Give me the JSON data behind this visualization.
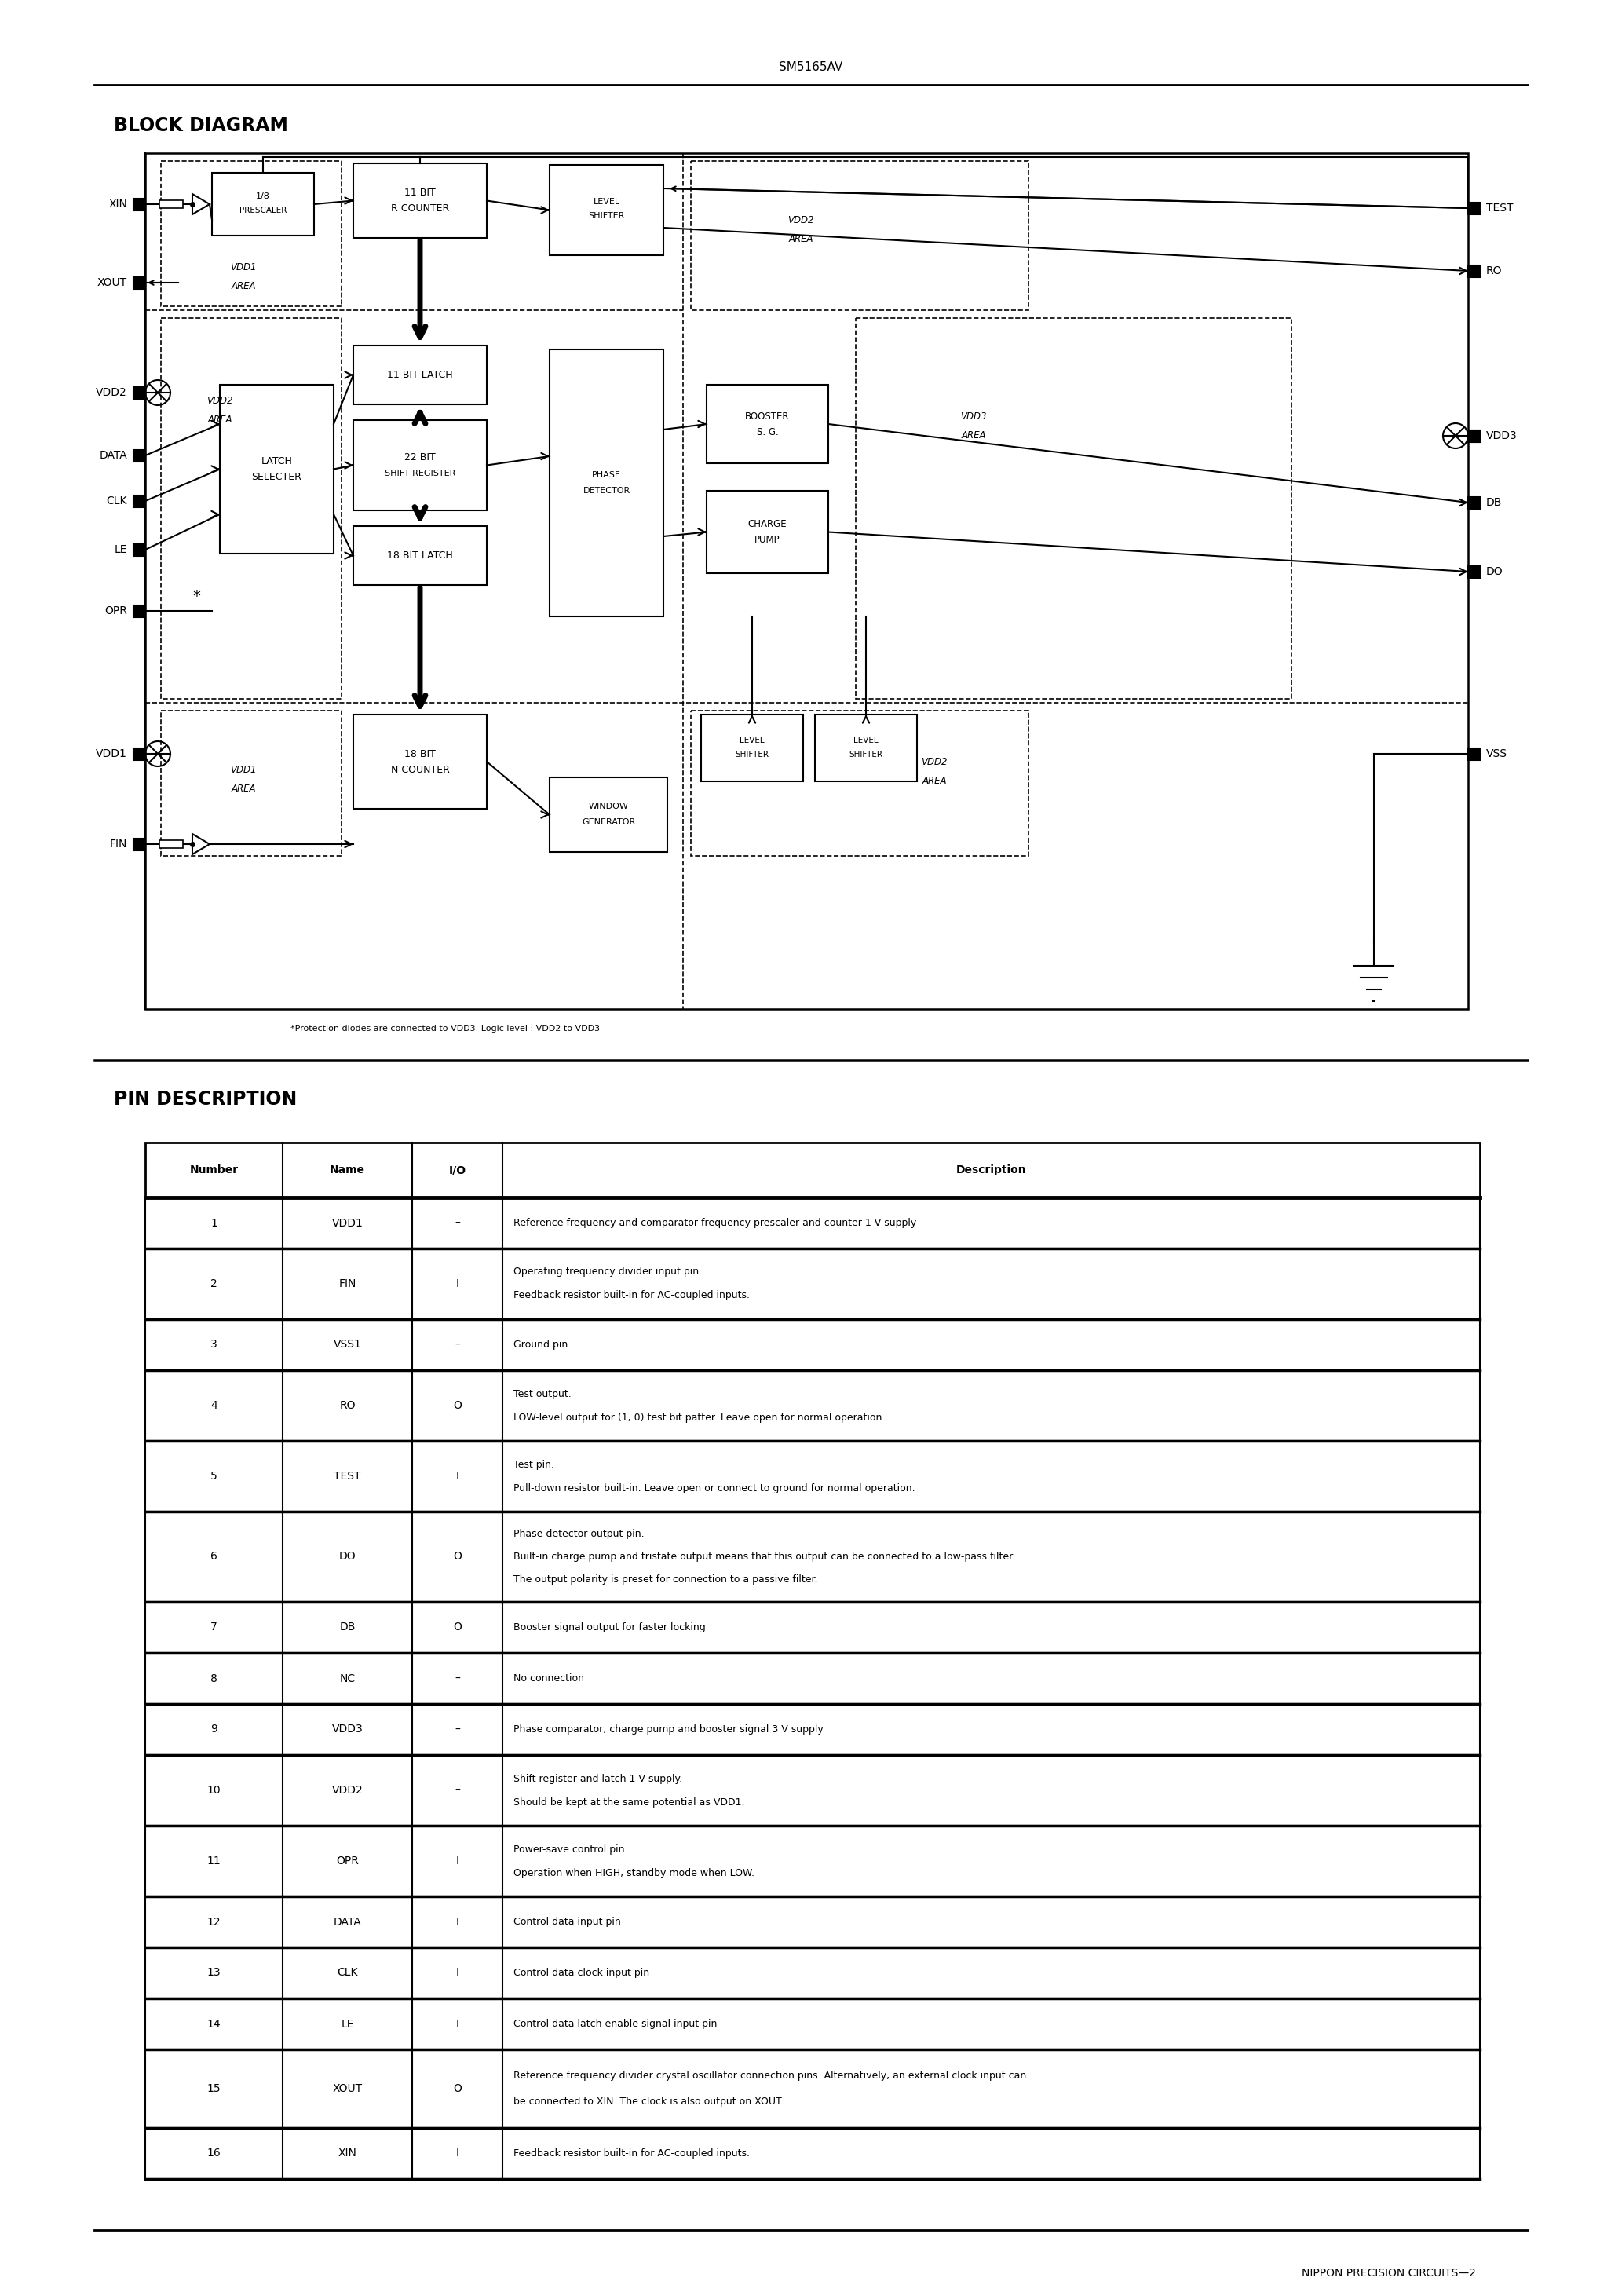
{
  "page_title": "SM5165AV",
  "footer": "NIPPON PRECISION CIRCUITS—2",
  "block_diagram_title": "BLOCK DIAGRAM",
  "pin_description_title": "PIN DESCRIPTION",
  "footnote": "*Protection diodes are connected to VDD3. Logic level : VDD2 to VDD3",
  "pin_table": {
    "headers": [
      "Number",
      "Name",
      "I/O",
      "Description"
    ],
    "rows": [
      [
        "1",
        "VDD1",
        "–",
        "Reference frequency and comparator frequency prescaler and counter 1 V supply"
      ],
      [
        "2",
        "FIN",
        "I",
        "Operating frequency divider input pin.\nFeedback resistor built-in for AC-coupled inputs."
      ],
      [
        "3",
        "VSS1",
        "–",
        "Ground pin"
      ],
      [
        "4",
        "RO",
        "O",
        "Test output.\nLOW-level output for (1, 0) test bit patter. Leave open for normal operation."
      ],
      [
        "5",
        "TEST",
        "I",
        "Test pin.\nPull-down resistor built-in. Leave open or connect to ground for normal operation."
      ],
      [
        "6",
        "DO",
        "O",
        "Phase detector output pin.\nBuilt-in charge pump and tristate output means that this output can be connected to a low-pass filter.\nThe output polarity is preset for connection to a passive filter."
      ],
      [
        "7",
        "DB",
        "O",
        "Booster signal output for faster locking"
      ],
      [
        "8",
        "NC",
        "–",
        "No connection"
      ],
      [
        "9",
        "VDD3",
        "–",
        "Phase comparator, charge pump and booster signal 3 V supply"
      ],
      [
        "10",
        "VDD2",
        "–",
        "Shift register and latch 1 V supply.\nShould be kept at the same potential as VDD1."
      ],
      [
        "11",
        "OPR",
        "I",
        "Power-save control pin.\nOperation when HIGH, standby mode when LOW."
      ],
      [
        "12",
        "DATA",
        "I",
        "Control data input pin"
      ],
      [
        "13",
        "CLK",
        "I",
        "Control data clock input pin"
      ],
      [
        "14",
        "LE",
        "I",
        "Control data latch enable signal input pin"
      ],
      [
        "15",
        "XOUT",
        "O",
        "Reference frequency divider crystal oscillator connection pins. Alternatively, an external clock input can\nbe connected to XIN. The clock is also output on XOUT."
      ],
      [
        "16",
        "XIN",
        "I",
        "Feedback resistor built-in for AC-coupled inputs."
      ]
    ]
  }
}
